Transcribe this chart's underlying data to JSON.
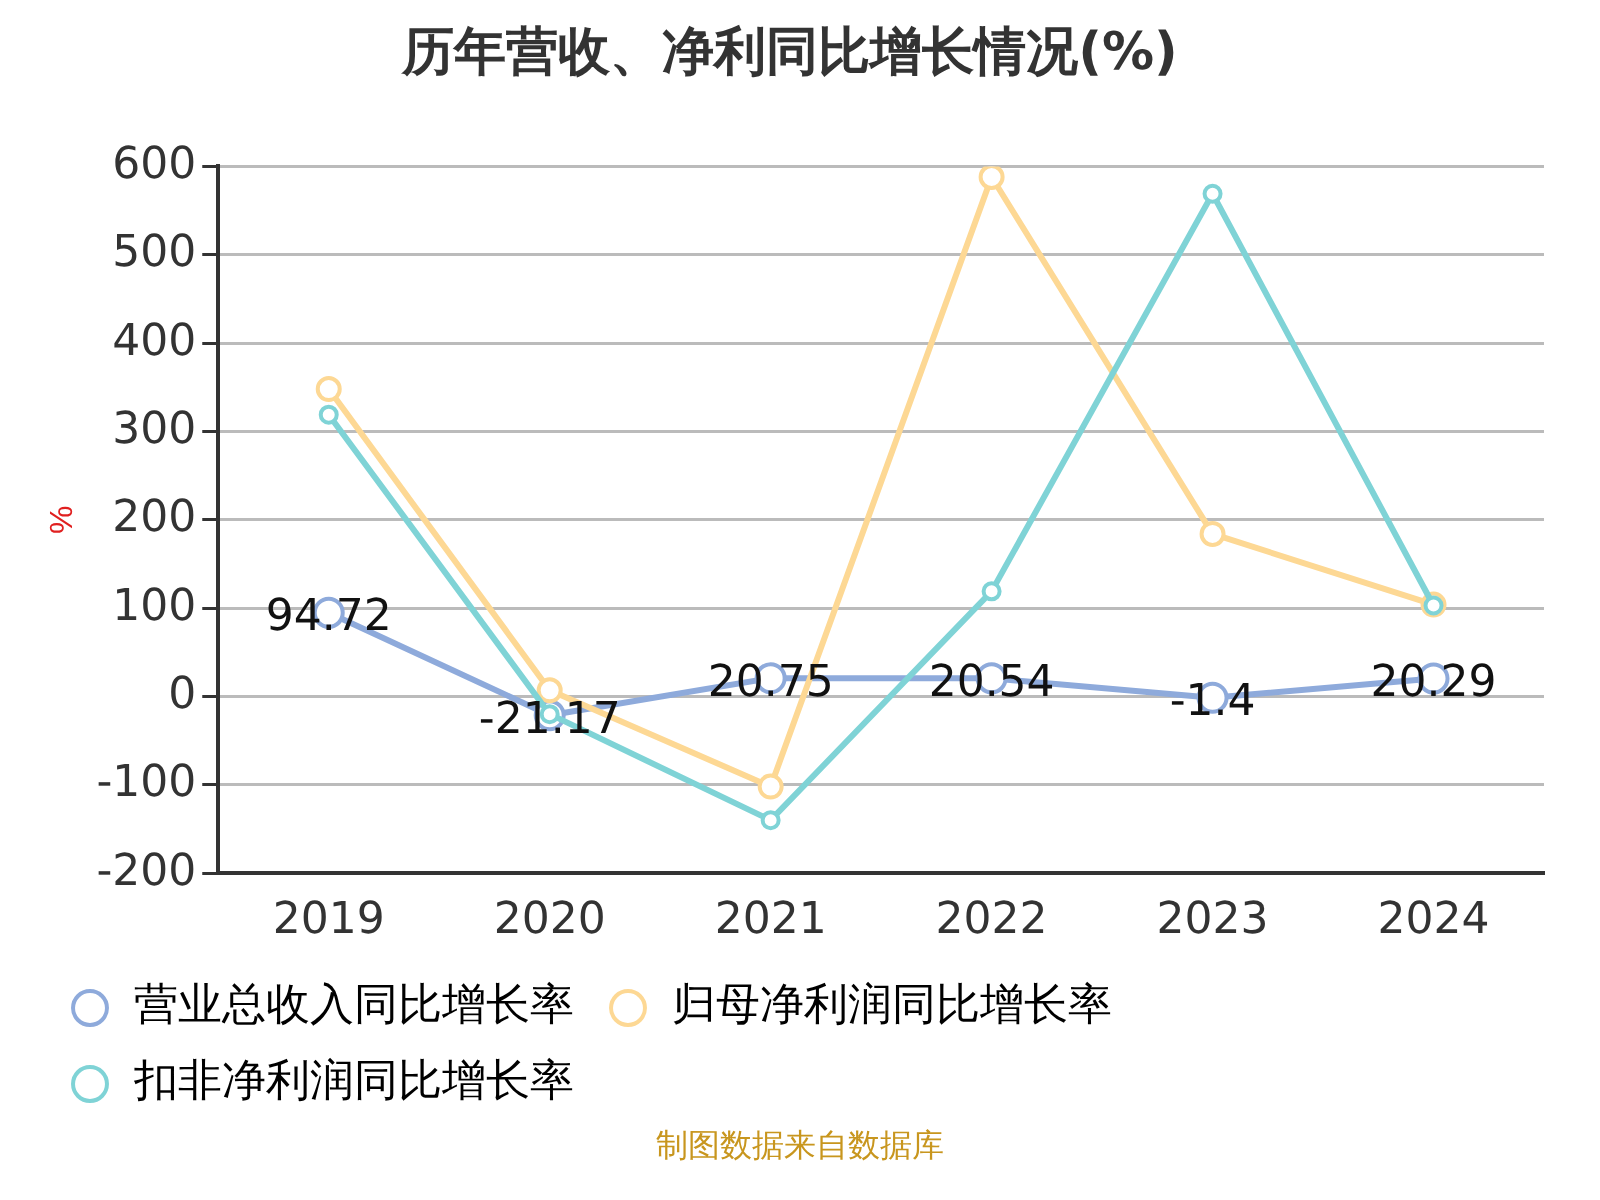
{
  "chart_data": {
    "type": "line",
    "title": "历年营收、净利同比增长情况(%)",
    "ylabel": "%",
    "categories": [
      "2019",
      "2020",
      "2021",
      "2022",
      "2023",
      "2024"
    ],
    "series": [
      {
        "name": "营业总收入同比增长率",
        "color": "#8eaadb",
        "values": [
          94.72,
          -21.17,
          20.75,
          20.54,
          -1.4,
          20.29
        ],
        "value_labels": [
          "94.72",
          "-21.17",
          "20.75",
          "20.54",
          "-1.4",
          "20.29"
        ]
      },
      {
        "name": "归母净利润同比增长率",
        "color": "#fdd894",
        "values": [
          348,
          7,
          -102,
          588,
          184,
          104
        ]
      },
      {
        "name": "扣非净利润同比增长率",
        "color": "#7fd3d6",
        "values": [
          319,
          -20,
          -140,
          119,
          569,
          103
        ]
      }
    ],
    "ylim": [
      -200,
      600
    ],
    "yticks": [
      -200,
      -100,
      0,
      100,
      200,
      300,
      400,
      500,
      600
    ],
    "grid": "y",
    "legend": "bottom",
    "marker": "circle",
    "line_style": "solid",
    "annotations": [
      "制图数据来自数据库"
    ]
  }
}
